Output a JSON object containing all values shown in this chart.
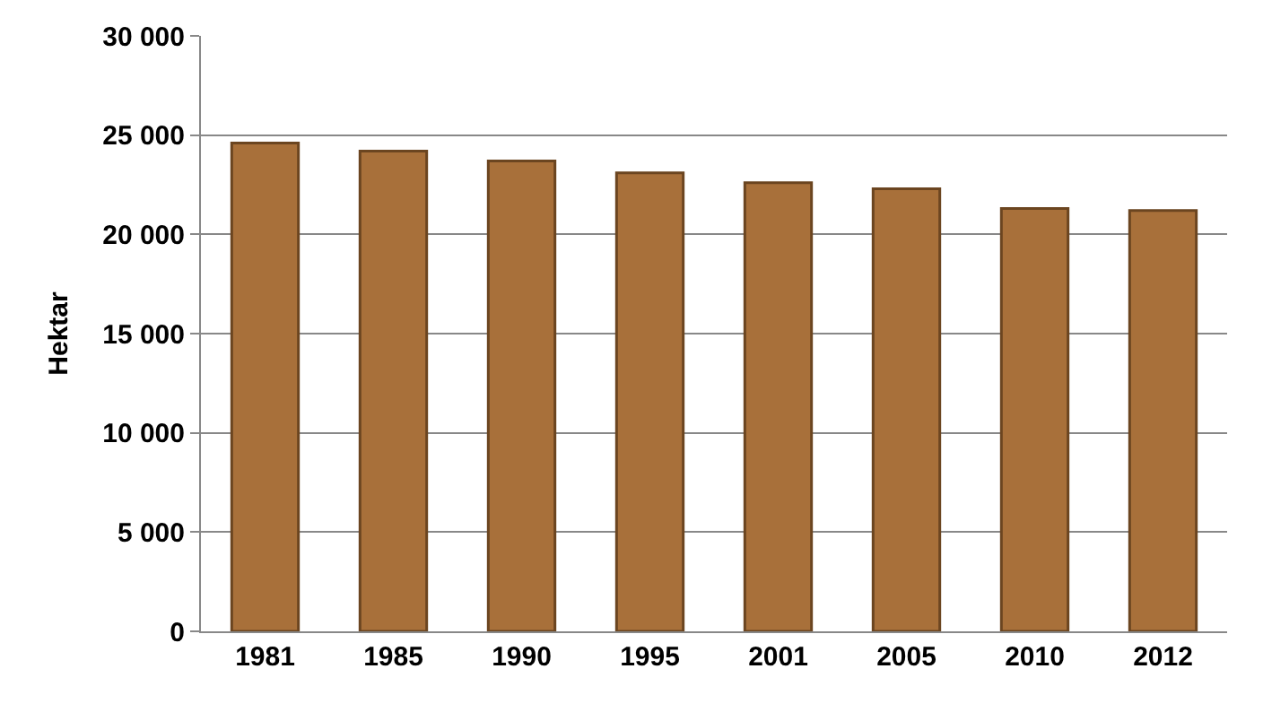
{
  "chart_data": {
    "type": "bar",
    "ylabel": "Hektar",
    "categories": [
      "1981",
      "1985",
      "1990",
      "1995",
      "2001",
      "2005",
      "2010",
      "2012"
    ],
    "values": [
      24600,
      24200,
      23700,
      23100,
      22600,
      22300,
      21300,
      21200
    ],
    "color": "#a8703a",
    "ylim": [
      0,
      30000
    ],
    "yticks": [
      {
        "value": 0,
        "label": "0"
      },
      {
        "value": 5000,
        "label": "5 000"
      },
      {
        "value": 10000,
        "label": "10 000"
      },
      {
        "value": 15000,
        "label": "15 000"
      },
      {
        "value": 20000,
        "label": "20 000"
      },
      {
        "value": 25000,
        "label": "25 000"
      },
      {
        "value": 30000,
        "label": "30 000"
      }
    ],
    "grid": "y"
  }
}
